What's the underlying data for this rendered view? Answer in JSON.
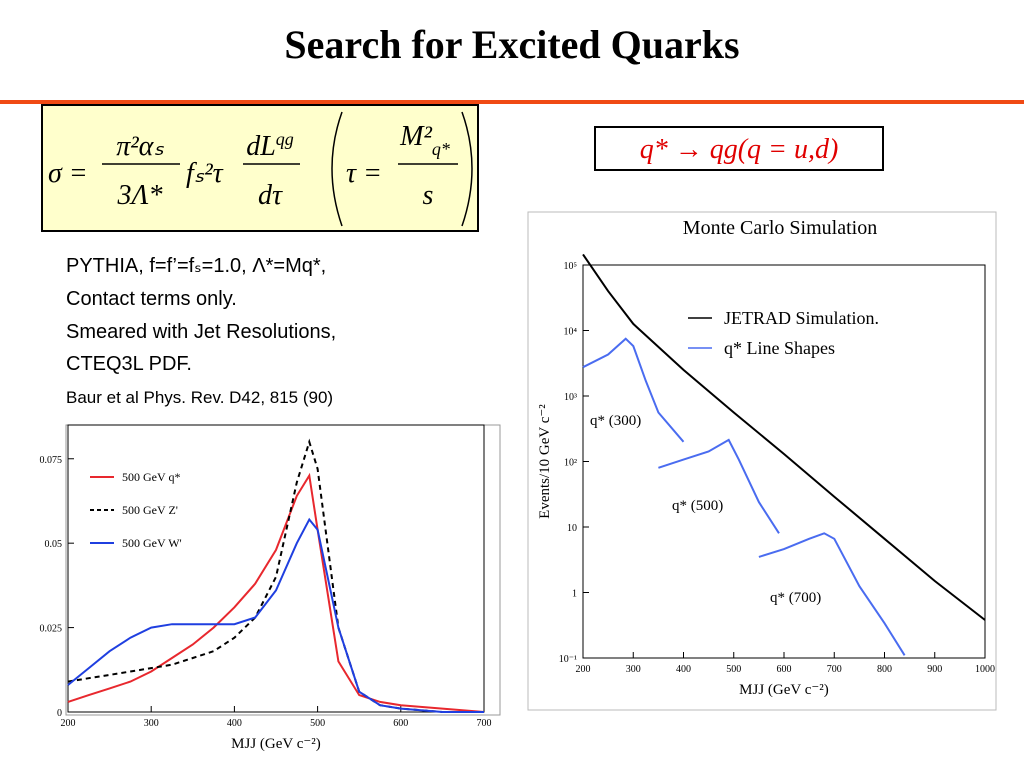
{
  "title": "Search for Excited Quarks",
  "formula": {
    "sigma": "σ =",
    "frac1_num": "π²αₛ",
    "frac1_den": "3Λ*",
    "factor": "fₛ²τ",
    "frac2_num": "dL",
    "frac2_num_sup": "qg",
    "frac2_den": "dτ",
    "tau": "τ =",
    "frac3_num": "M²",
    "frac3_num_sub": "q*",
    "frac3_den": "s"
  },
  "reaction": "q* → qg(q = u,d)",
  "notes": [
    "PYTHIA, f=f’=fₛ=1.0, Λ*=Mq*,",
    "Contact terms only.",
    "Smeared with Jet Resolutions,",
    "CTEQ3L PDF.",
    "Baur et al Phys. Rev. D42, 815 (90)"
  ],
  "chart_data": [
    {
      "type": "line",
      "x_label": "MJJ (GeV c⁻²)",
      "xlim": [
        200,
        700
      ],
      "xticks": [
        200,
        300,
        400,
        500,
        600,
        700
      ],
      "ylim": [
        0,
        0.085
      ],
      "yticks": [
        0,
        0.025,
        0.05,
        0.075
      ],
      "log_y": false,
      "legend": "upper left",
      "series": [
        {
          "name": "500 GeV q*",
          "color": "#e8282e",
          "dash": false,
          "x": [
            200,
            225,
            250,
            275,
            300,
            325,
            350,
            375,
            400,
            425,
            450,
            475,
            490,
            500,
            525,
            550,
            575,
            600,
            650,
            700
          ],
          "values": [
            0.003,
            0.005,
            0.007,
            0.009,
            0.012,
            0.016,
            0.02,
            0.025,
            0.031,
            0.038,
            0.048,
            0.064,
            0.07,
            0.054,
            0.015,
            0.005,
            0.003,
            0.002,
            0.001,
            0
          ]
        },
        {
          "name": "500 GeV Z'",
          "color": "#000000",
          "dash": true,
          "x": [
            200,
            225,
            250,
            275,
            300,
            325,
            350,
            375,
            400,
            425,
            450,
            475,
            490,
            500,
            525,
            550,
            575,
            600,
            650,
            700
          ],
          "values": [
            0.009,
            0.01,
            0.011,
            0.012,
            0.013,
            0.014,
            0.016,
            0.018,
            0.022,
            0.028,
            0.04,
            0.068,
            0.08,
            0.072,
            0.025,
            0.006,
            0.002,
            0.001,
            0,
            0
          ]
        },
        {
          "name": "500 GeV W'",
          "color": "#1f3fe0",
          "dash": false,
          "x": [
            200,
            225,
            250,
            275,
            300,
            325,
            350,
            375,
            400,
            425,
            450,
            475,
            490,
            500,
            525,
            550,
            575,
            600,
            650,
            700
          ],
          "values": [
            0.008,
            0.013,
            0.018,
            0.022,
            0.025,
            0.026,
            0.026,
            0.026,
            0.026,
            0.028,
            0.036,
            0.05,
            0.057,
            0.054,
            0.025,
            0.006,
            0.002,
            0.001,
            0,
            0
          ]
        }
      ]
    },
    {
      "type": "line",
      "title": "Monte Carlo Simulation",
      "x_label": "MJJ (GeV c⁻²)",
      "y_label": "Events/10 GeV c⁻²",
      "xlim": [
        200,
        1000
      ],
      "xticks": [
        200,
        300,
        400,
        500,
        600,
        700,
        800,
        900,
        1000
      ],
      "ylim": [
        0.1,
        100000
      ],
      "log_y": true,
      "yticks": [
        {
          "value": 0.1,
          "label": "10⁻¹"
        },
        1,
        10,
        {
          "value": 100,
          "label": "10²"
        },
        {
          "value": 1000,
          "label": "10³"
        },
        {
          "value": 10000,
          "label": "10⁴"
        },
        {
          "value": 100000,
          "label": "10⁵"
        }
      ],
      "line_shapes_label": "q* Line Shapes",
      "line_shapes_color": "#4a6cf0",
      "series": [
        {
          "name": "JETRAD Simulation.",
          "color": "#000000",
          "x": [
            200,
            250,
            300,
            400,
            500,
            600,
            700,
            800,
            900,
            1000
          ],
          "values": [
            145000,
            40000,
            12600,
            2500,
            560,
            130,
            29,
            6.6,
            1.5,
            0.38
          ]
        },
        {
          "name": "q* (300)",
          "color": "#4a6cf0",
          "x": [
            200,
            250,
            285,
            300,
            325,
            350,
            400
          ],
          "values": [
            2750,
            4300,
            7500,
            5800,
            1700,
            560,
            200
          ]
        },
        {
          "name": "q* (500)",
          "color": "#4a6cf0",
          "x": [
            350,
            400,
            450,
            490,
            510,
            550,
            590
          ],
          "values": [
            80,
            107,
            142,
            214,
            107,
            24,
            8
          ]
        },
        {
          "name": "q* (700)",
          "color": "#4a6cf0",
          "x": [
            550,
            600,
            650,
            680,
            700,
            750,
            800,
            840
          ],
          "values": [
            3.5,
            4.6,
            6.6,
            8,
            6.6,
            1.25,
            0.34,
            0.11
          ]
        }
      ]
    }
  ]
}
